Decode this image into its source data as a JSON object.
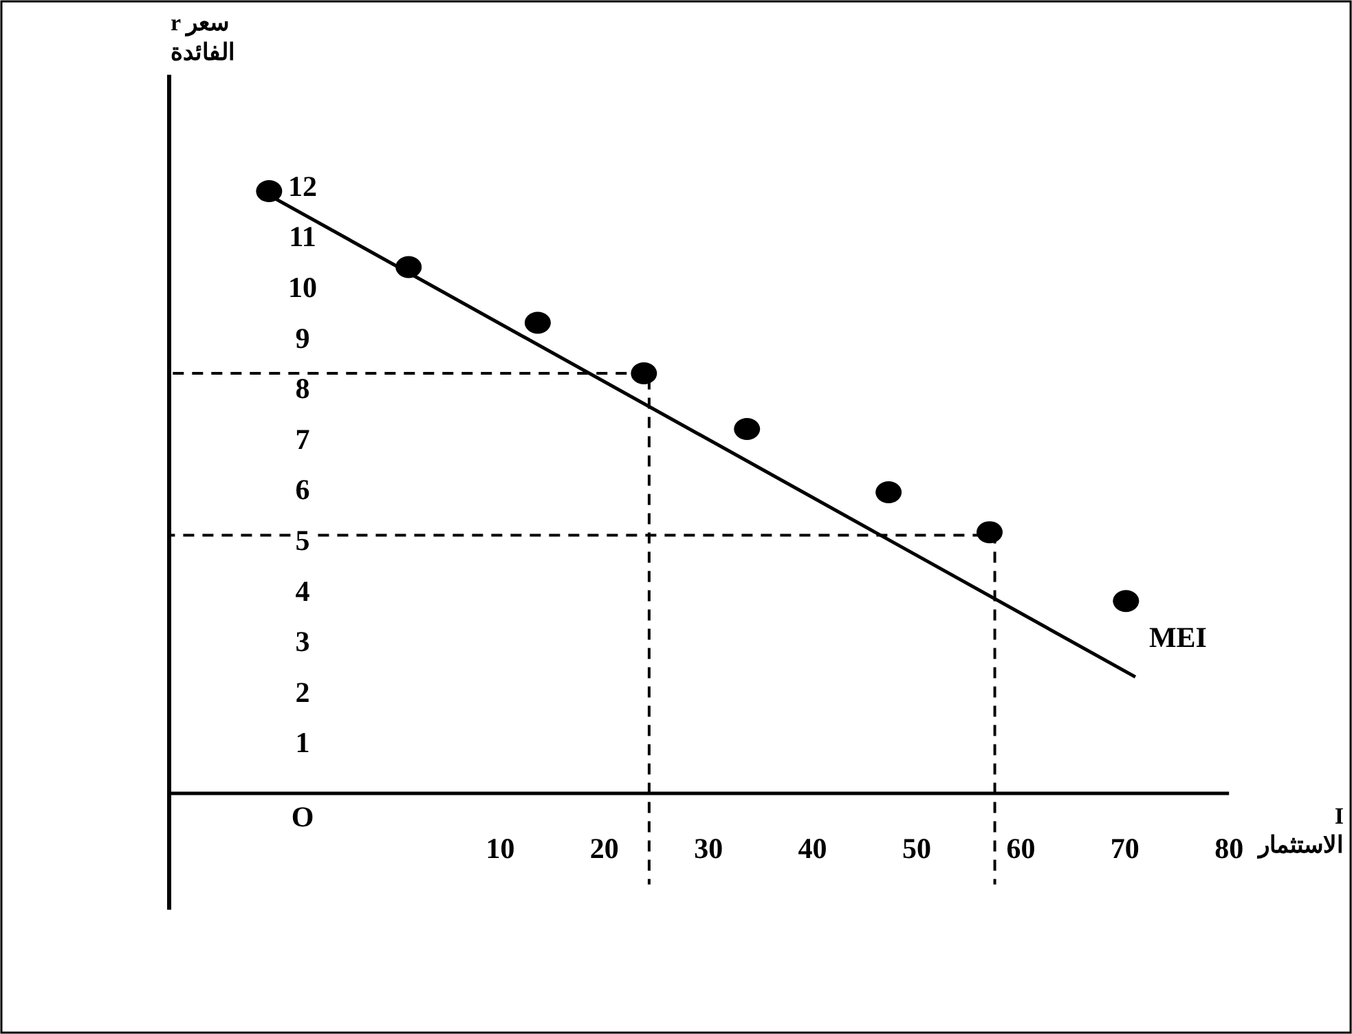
{
  "chart_data": {
    "type": "scatter",
    "xlabel": "I\nالاستثمار",
    "ylabel": "r سعر\nالفائدة",
    "xlim": [
      -21.8,
      80
    ],
    "ylim": [
      -2.3,
      14.2
    ],
    "xticks": [
      10,
      20,
      30,
      40,
      50,
      60,
      70,
      80
    ],
    "yticks": [
      1,
      2,
      3,
      4,
      5,
      6,
      7,
      8,
      9,
      10,
      11,
      12
    ],
    "annotations": [
      "O"
    ],
    "grid": false,
    "series": [
      {
        "marker": "circle",
        "color": "#000000",
        "x": [
          -12.2,
          1.2,
          13.6,
          23.8,
          33.7,
          47.3,
          57.0,
          70.1
        ],
        "values": [
          11.9,
          10.4,
          9.3,
          8.3,
          7.2,
          5.95,
          5.16,
          3.8
        ]
      },
      {
        "type": "line",
        "name": "MEI",
        "color": "#000000",
        "line_style": "solid",
        "x": [
          -12.9,
          71.0
        ],
        "values": [
          11.9,
          2.3
        ]
      },
      {
        "type": "line",
        "color": "#000000",
        "line_style": "dashed",
        "x": [
          -21.8,
          24.3,
          24.3
        ],
        "values": [
          8.3,
          8.3,
          -1.8
        ]
      },
      {
        "type": "line",
        "color": "#000000",
        "line_style": "dashed",
        "x": [
          -21.8,
          57.5,
          57.5
        ],
        "values": [
          5.1,
          5.1,
          -1.8
        ]
      }
    ]
  }
}
